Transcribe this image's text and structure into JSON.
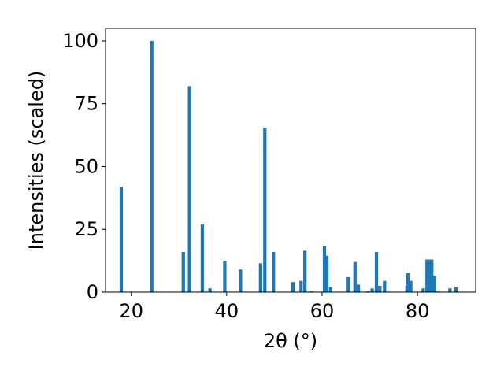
{
  "chart_data": {
    "type": "bar",
    "xlabel": "2θ (°)",
    "ylabel": "Intensities (scaled)",
    "xlim": [
      14.6,
      92.2
    ],
    "ylim": [
      0,
      105
    ],
    "xticks": [
      20,
      40,
      60,
      80
    ],
    "yticks": [
      0,
      25,
      50,
      75,
      100
    ],
    "bar_width": 0.7,
    "color": "#1f77b4",
    "grid": false,
    "x": [
      17.9,
      24.3,
      30.9,
      32.2,
      34.9,
      36.5,
      39.6,
      42.9,
      47.1,
      48.0,
      49.8,
      53.9,
      55.6,
      56.4,
      57.8,
      60.5,
      61.0,
      61.8,
      65.5,
      66.9,
      67.6,
      69.6,
      70.5,
      71.4,
      72.1,
      73.1,
      77.8,
      78.0,
      78.6,
      81.2,
      82.0,
      82.4,
      83.0,
      83.6,
      84.0,
      86.8,
      88.1
    ],
    "values": [
      42,
      100,
      16,
      82,
      27,
      1.5,
      12.5,
      9,
      11.5,
      65.5,
      16,
      4,
      4.5,
      16.5,
      0.3,
      18.5,
      14.5,
      2,
      6,
      12,
      3,
      0.3,
      1.5,
      16,
      2.5,
      4.5,
      2.5,
      7.5,
      4.5,
      1.5,
      13,
      13,
      13,
      6.5,
      0.3,
      1.5,
      2
    ]
  }
}
